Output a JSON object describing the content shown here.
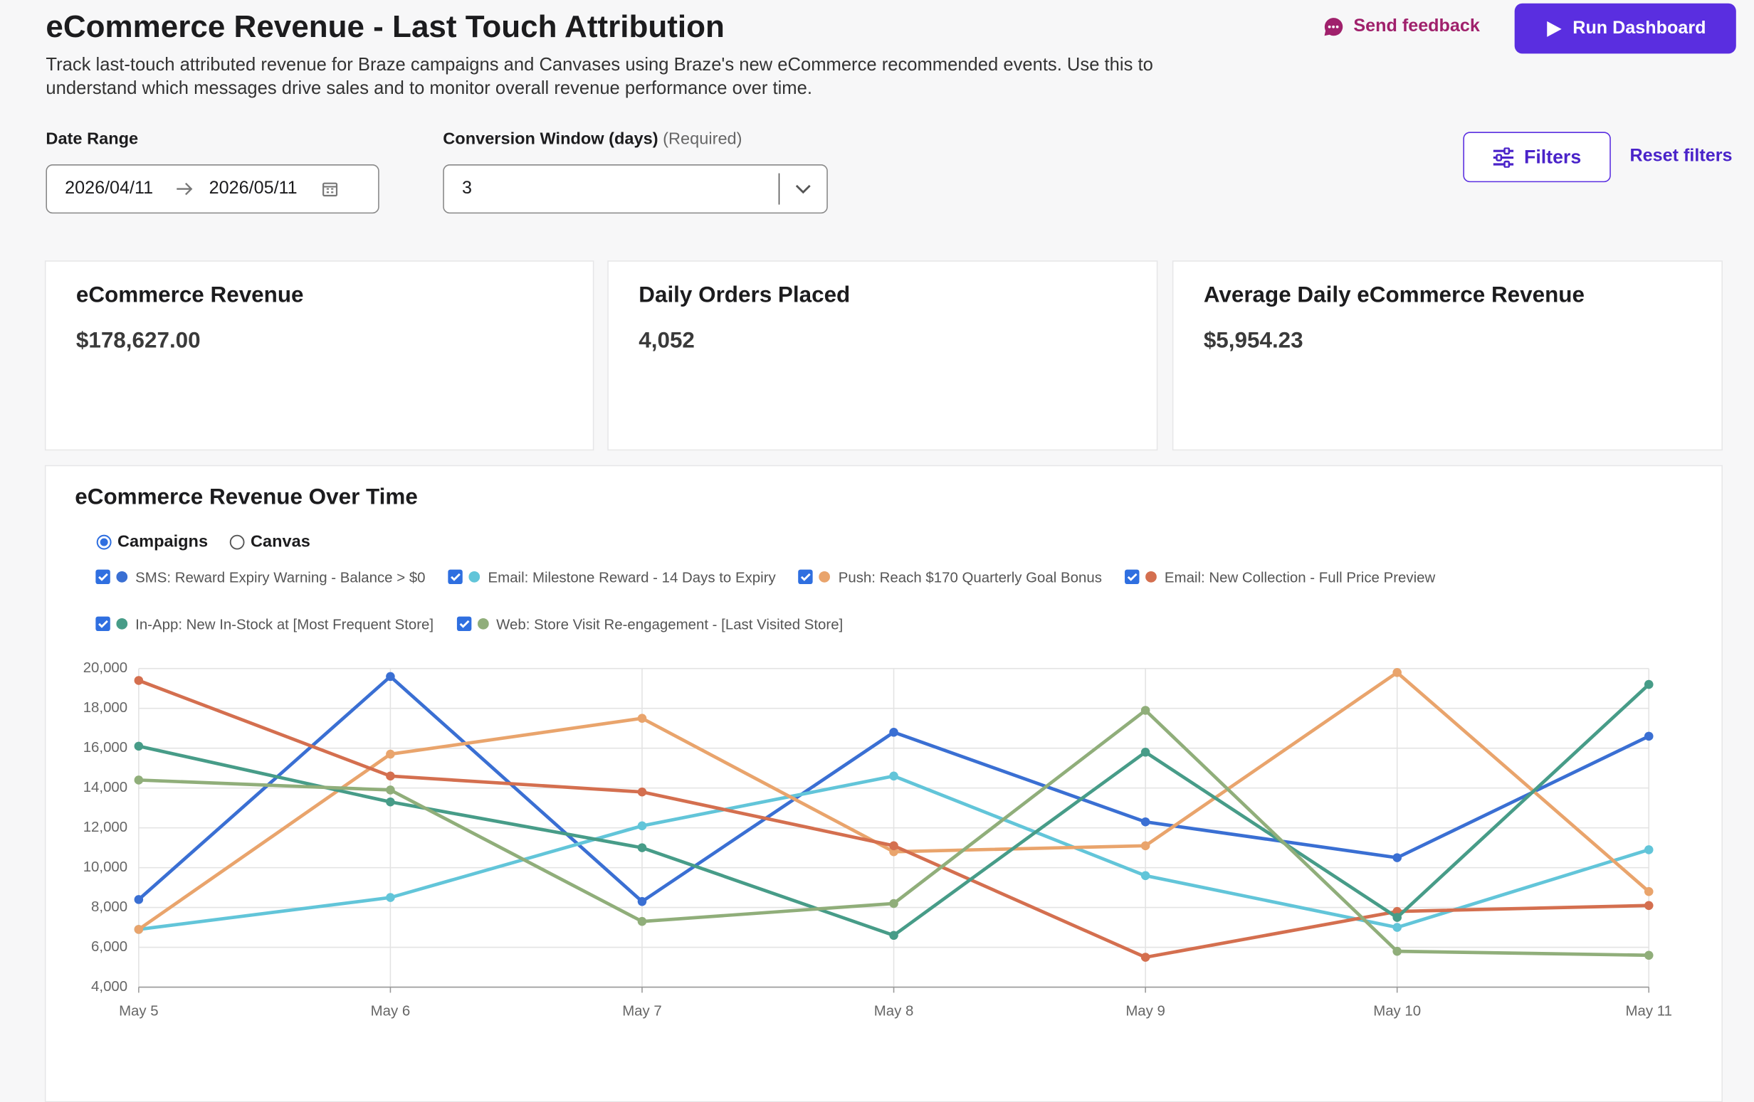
{
  "header": {
    "title": "eCommerce Revenue - Last Touch Attribution",
    "description": "Track last-touch attributed revenue for Braze campaigns and Canvases using Braze's new eCommerce recommended events. Use this to understand which messages drive sales and to monitor overall revenue performance over time.",
    "send_feedback": "Send feedback",
    "run_button": "Run Dashboard"
  },
  "filters": {
    "date_range_label": "Date Range",
    "start_date": "2026/04/11",
    "end_date": "2026/05/11",
    "conversion_window_label": "Conversion Window (days)",
    "required_note": "(Required)",
    "conversion_window_value": "3",
    "filters_button": "Filters",
    "reset_filters": "Reset filters"
  },
  "kpis": [
    {
      "title": "eCommerce Revenue",
      "value": "$178,627.00"
    },
    {
      "title": "Daily Orders Placed",
      "value": "4,052"
    },
    {
      "title": "Average Daily eCommerce Revenue",
      "value": "$5,954.23"
    }
  ],
  "chart_data": {
    "type": "line",
    "title": "eCommerce Revenue Over Time",
    "views": [
      "Campaigns",
      "Canvas"
    ],
    "categories": [
      "May 5",
      "May 6",
      "May 7",
      "May 8",
      "May 9",
      "May 10",
      "May 11"
    ],
    "series": [
      {
        "name": "SMS: Reward Expiry Warning - Balance > $0",
        "color": "#3a6fd3",
        "values": [
          8400,
          19600,
          8300,
          16800,
          12300,
          10500,
          16600
        ]
      },
      {
        "name": "Email: Milestone Reward - 14 Days to Expiry",
        "color": "#62c5d9",
        "values": [
          6900,
          8500,
          12100,
          14600,
          9600,
          7000,
          10900
        ]
      },
      {
        "name": "Push: Reach $170 Quarterly Goal Bonus",
        "color": "#e9a46c",
        "values": [
          6900,
          15700,
          17500,
          10800,
          11100,
          19800,
          8800
        ]
      },
      {
        "name": "Email: New Collection - Full Price Preview",
        "color": "#d46f4f",
        "values": [
          19400,
          14600,
          13800,
          11100,
          5500,
          7800,
          8100
        ]
      },
      {
        "name": "In-App: New In-Stock at [Most Frequent Store]",
        "color": "#479c88",
        "values": [
          16100,
          13300,
          11000,
          6600,
          15800,
          7500,
          19200
        ]
      },
      {
        "name": "Web: Store Visit Re-engagement - [Last Visited Store]",
        "color": "#90ae7a",
        "values": [
          14400,
          13900,
          7300,
          8200,
          17900,
          5800,
          5600
        ]
      }
    ],
    "ylim": [
      4000,
      20000
    ],
    "yticks": [
      {
        "value": 4000,
        "label": "4,000"
      },
      {
        "value": 6000,
        "label": "6,000"
      },
      {
        "value": 8000,
        "label": "8,000"
      },
      {
        "value": 10000,
        "label": "10,000"
      },
      {
        "value": 12000,
        "label": "12,000"
      },
      {
        "value": 14000,
        "label": "14,000"
      },
      {
        "value": 16000,
        "label": "16,000"
      },
      {
        "value": 18000,
        "label": "18,000"
      },
      {
        "value": 20000,
        "label": "20,000"
      }
    ],
    "grid": true
  }
}
